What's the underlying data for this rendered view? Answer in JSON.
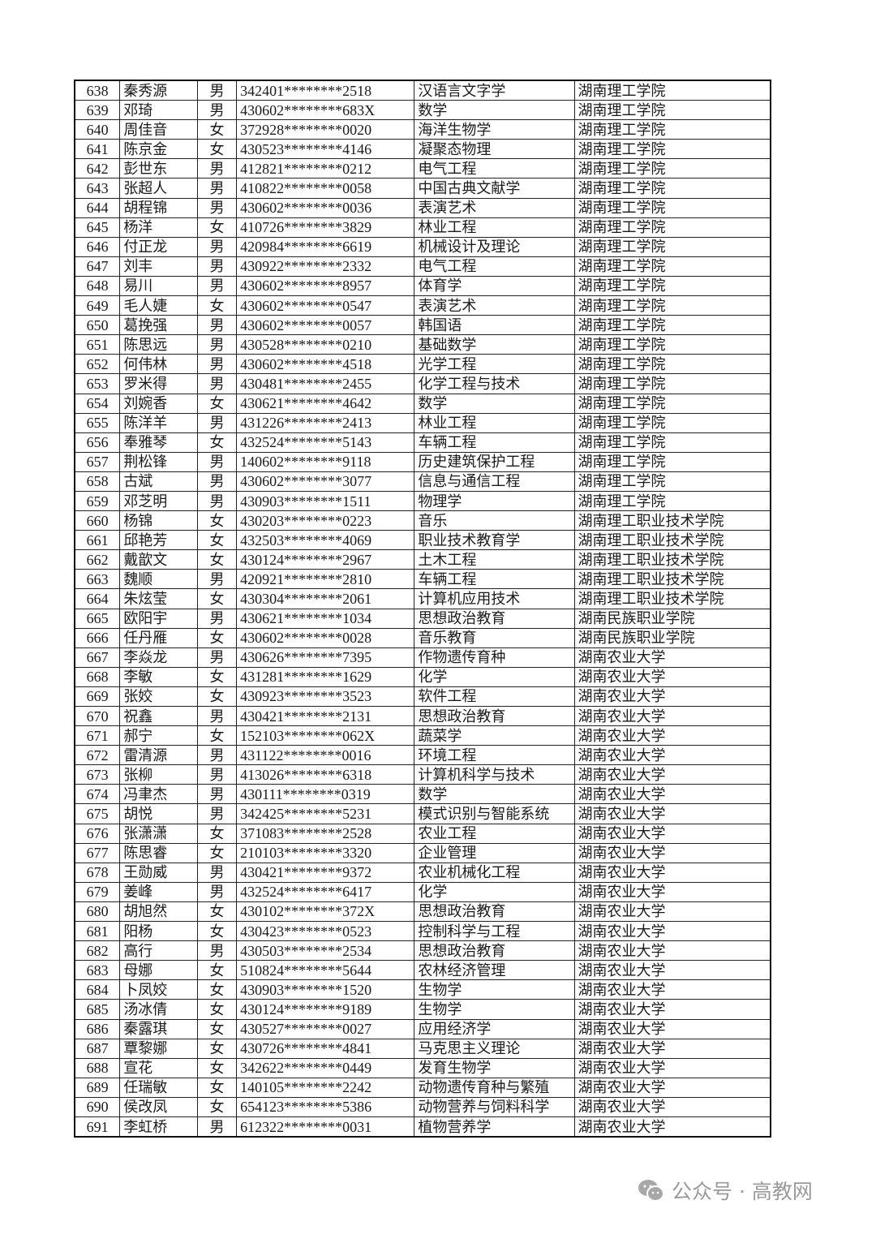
{
  "rows": [
    [
      "638",
      "秦秀源",
      "男",
      "342401********2518",
      "汉语言文字学",
      "湖南理工学院"
    ],
    [
      "639",
      "邓琦",
      "男",
      "430602********683X",
      "数学",
      "湖南理工学院"
    ],
    [
      "640",
      "周佳音",
      "女",
      "372928********0020",
      "海洋生物学",
      "湖南理工学院"
    ],
    [
      "641",
      "陈京金",
      "女",
      "430523********4146",
      "凝聚态物理",
      "湖南理工学院"
    ],
    [
      "642",
      "彭世东",
      "男",
      "412821********0212",
      "电气工程",
      "湖南理工学院"
    ],
    [
      "643",
      "张超人",
      "男",
      "410822********0058",
      "中国古典文献学",
      "湖南理工学院"
    ],
    [
      "644",
      "胡程锦",
      "男",
      "430602********0036",
      "表演艺术",
      "湖南理工学院"
    ],
    [
      "645",
      "杨洋",
      "女",
      "410726********3829",
      "林业工程",
      "湖南理工学院"
    ],
    [
      "646",
      "付正龙",
      "男",
      "420984********6619",
      "机械设计及理论",
      "湖南理工学院"
    ],
    [
      "647",
      "刘丰",
      "男",
      "430922********2332",
      "电气工程",
      "湖南理工学院"
    ],
    [
      "648",
      "易川",
      "男",
      "430602********8957",
      "体育学",
      "湖南理工学院"
    ],
    [
      "649",
      "毛人婕",
      "女",
      "430602********0547",
      "表演艺术",
      "湖南理工学院"
    ],
    [
      "650",
      "葛挽强",
      "男",
      "430602********0057",
      "韩国语",
      "湖南理工学院"
    ],
    [
      "651",
      "陈思远",
      "男",
      "430528********0210",
      "基础数学",
      "湖南理工学院"
    ],
    [
      "652",
      "何伟林",
      "男",
      "430602********4518",
      "光学工程",
      "湖南理工学院"
    ],
    [
      "653",
      "罗米得",
      "男",
      "430481********2455",
      "化学工程与技术",
      "湖南理工学院"
    ],
    [
      "654",
      "刘婉香",
      "女",
      "430621********4642",
      "数学",
      "湖南理工学院"
    ],
    [
      "655",
      "陈洋羊",
      "男",
      "431226********2413",
      "林业工程",
      "湖南理工学院"
    ],
    [
      "656",
      "奉雅琴",
      "女",
      "432524********5143",
      "车辆工程",
      "湖南理工学院"
    ],
    [
      "657",
      "荆松锋",
      "男",
      "140602********9118",
      "历史建筑保护工程",
      "湖南理工学院"
    ],
    [
      "658",
      "古斌",
      "男",
      "430602********3077",
      "信息与通信工程",
      "湖南理工学院"
    ],
    [
      "659",
      "邓芝明",
      "男",
      "430903********1511",
      "物理学",
      "湖南理工学院"
    ],
    [
      "660",
      "杨锦",
      "女",
      "430203********0223",
      "音乐",
      "湖南理工职业技术学院"
    ],
    [
      "661",
      "邱艳芳",
      "女",
      "432503********4069",
      "职业技术教育学",
      "湖南理工职业技术学院"
    ],
    [
      "662",
      "戴歆文",
      "女",
      "430124********2967",
      "土木工程",
      "湖南理工职业技术学院"
    ],
    [
      "663",
      "魏顺",
      "男",
      "420921********2810",
      "车辆工程",
      "湖南理工职业技术学院"
    ],
    [
      "664",
      "朱炫莹",
      "女",
      "430304********2061",
      "计算机应用技术",
      "湖南理工职业技术学院"
    ],
    [
      "665",
      "欧阳宇",
      "男",
      "430621********1034",
      "思想政治教育",
      "湖南民族职业学院"
    ],
    [
      "666",
      "任丹雁",
      "女",
      "430602********0028",
      "音乐教育",
      "湖南民族职业学院"
    ],
    [
      "667",
      "李焱龙",
      "男",
      "430626********7395",
      "作物遗传育种",
      "湖南农业大学"
    ],
    [
      "668",
      "李敏",
      "女",
      "431281********1629",
      "化学",
      "湖南农业大学"
    ],
    [
      "669",
      "张姣",
      "女",
      "430923********3523",
      "软件工程",
      "湖南农业大学"
    ],
    [
      "670",
      "祝鑫",
      "男",
      "430421********2131",
      "思想政治教育",
      "湖南农业大学"
    ],
    [
      "671",
      "郝宁",
      "女",
      "152103********062X",
      "蔬菜学",
      "湖南农业大学"
    ],
    [
      "672",
      "雷清源",
      "男",
      "431122********0016",
      "环境工程",
      "湖南农业大学"
    ],
    [
      "673",
      "张柳",
      "男",
      "413026********6318",
      "计算机科学与技术",
      "湖南农业大学"
    ],
    [
      "674",
      "冯聿杰",
      "男",
      "430111********0319",
      "数学",
      "湖南农业大学"
    ],
    [
      "675",
      "胡悦",
      "男",
      "342425********5231",
      "模式识别与智能系统",
      "湖南农业大学"
    ],
    [
      "676",
      "张潇潇",
      "女",
      "371083********2528",
      "农业工程",
      "湖南农业大学"
    ],
    [
      "677",
      "陈思睿",
      "女",
      "210103********3320",
      "企业管理",
      "湖南农业大学"
    ],
    [
      "678",
      "王勋威",
      "男",
      "430421********9372",
      "农业机械化工程",
      "湖南农业大学"
    ],
    [
      "679",
      "姜峰",
      "男",
      "432524********6417",
      "化学",
      "湖南农业大学"
    ],
    [
      "680",
      "胡旭然",
      "女",
      "430102********372X",
      "思想政治教育",
      "湖南农业大学"
    ],
    [
      "681",
      "阳杨",
      "女",
      "430423********0523",
      "控制科学与工程",
      "湖南农业大学"
    ],
    [
      "682",
      "高行",
      "男",
      "430503********2534",
      "思想政治教育",
      "湖南农业大学"
    ],
    [
      "683",
      "母娜",
      "女",
      "510824********5644",
      "农林经济管理",
      "湖南农业大学"
    ],
    [
      "684",
      "卜凤姣",
      "女",
      "430903********1520",
      "生物学",
      "湖南农业大学"
    ],
    [
      "685",
      "汤冰倩",
      "女",
      "430124********9189",
      "生物学",
      "湖南农业大学"
    ],
    [
      "686",
      "秦露琪",
      "女",
      "430527********0027",
      "应用经济学",
      "湖南农业大学"
    ],
    [
      "687",
      "覃黎娜",
      "女",
      "430726********4841",
      "马克思主义理论",
      "湖南农业大学"
    ],
    [
      "688",
      "宣花",
      "女",
      "342622********0449",
      "发育生物学",
      "湖南农业大学"
    ],
    [
      "689",
      "任瑞敏",
      "女",
      "140105********2242",
      "动物遗传育种与繁殖",
      "湖南农业大学"
    ],
    [
      "690",
      "侯改凤",
      "女",
      "654123********5386",
      "动物营养与饲料科学",
      "湖南农业大学"
    ],
    [
      "691",
      "李虹桥",
      "男",
      "612322********0031",
      "植物营养学",
      "湖南农业大学"
    ]
  ],
  "watermark": {
    "text": "公众号 · 高教网",
    "icon": "wechat-icon"
  }
}
